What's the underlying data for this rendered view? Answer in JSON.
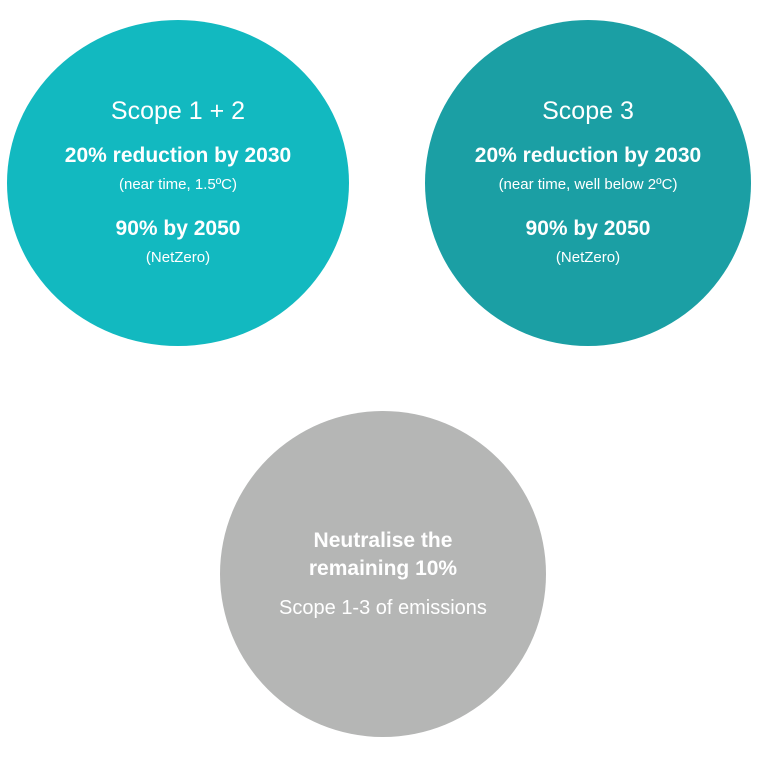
{
  "colors": {
    "scope12": "#12b9c0",
    "scope3": "#1b9fa4",
    "neutralise": "#b5b6b5",
    "text": "#ffffff"
  },
  "scope12": {
    "title": "Scope 1 + 2",
    "reduction": "20% reduction by 2030",
    "reduction_note": "(near time, 1.5ºC)",
    "target": "90% by 2050",
    "target_note": "(NetZero)"
  },
  "scope3": {
    "title": "Scope 3",
    "reduction": "20% reduction by 2030",
    "reduction_note": "(near time, well below 2ºC)",
    "target": "90% by 2050",
    "target_note": "(NetZero)"
  },
  "neutralise": {
    "title_line1": "Neutralise the",
    "title_line2": "remaining 10%",
    "note": "Scope 1-3 of emissions"
  }
}
